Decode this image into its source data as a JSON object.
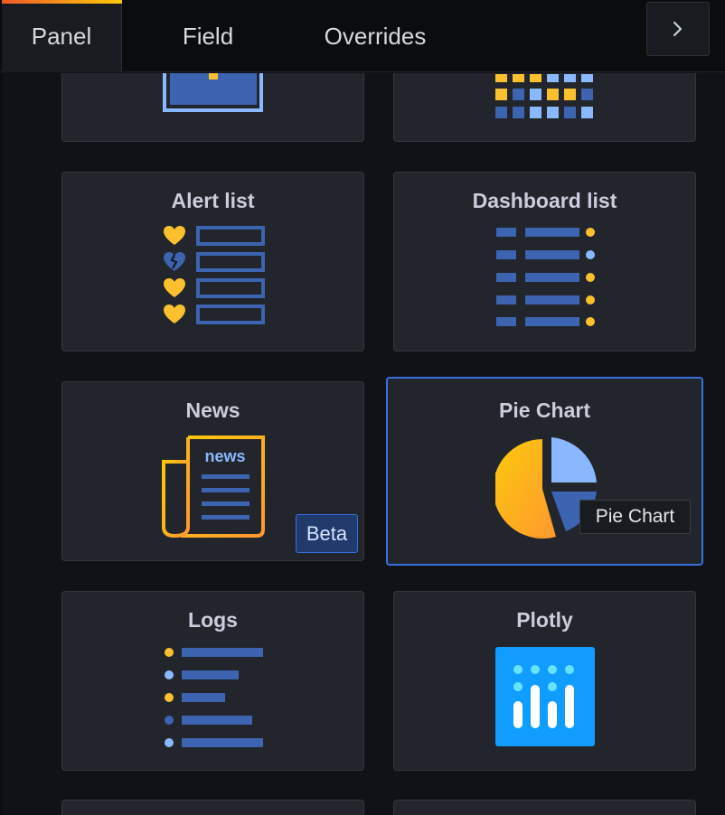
{
  "tabs": {
    "panel": "Panel",
    "field": "Field",
    "overrides": "Overrides"
  },
  "icons": {
    "collapse": "chevron-right-icon"
  },
  "cards": {
    "alert_list": "Alert list",
    "dashboard_list": "Dashboard list",
    "news": "News",
    "pie_chart": "Pie Chart",
    "logs": "Logs",
    "plotly": "Plotly"
  },
  "news_icon_text": "news",
  "beta_badge": "Beta",
  "tooltip": "Pie Chart",
  "colors": {
    "accent_blue": "#3871dc",
    "icon_blue": "#3c64b0",
    "light_blue": "#8ab8ff",
    "yellow": "#fbc02d",
    "plotly_blue": "#119dff"
  }
}
